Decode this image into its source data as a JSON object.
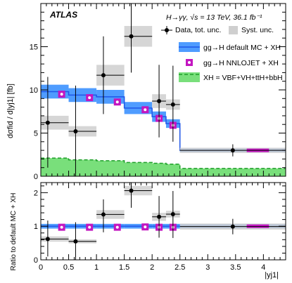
{
  "chart_data": [
    {
      "type": "bar",
      "panel": "main",
      "ylabel": "dσfid / d|yj1| [fb]",
      "ylim": [
        0,
        20
      ],
      "yticks": [
        0,
        5,
        10,
        15
      ],
      "xlim": [
        0,
        4.4
      ],
      "annotations": {
        "atlas": "ATLAS",
        "process": "H→γγ, √s = 13 TeV,  36.1 fb⁻¹"
      },
      "legend": {
        "data": "Data, tot. unc.",
        "syst": "Syst. unc.",
        "default_mc": "gg→H default MC + XH",
        "nnlojet": "gg→H NNLOJET + XH",
        "xh": "XH = VBF+VH+ttH+bbH"
      },
      "bins": [
        {
          "lo": 0.0,
          "hi": 0.5,
          "data": 6.2,
          "stat_lo": 1.0,
          "stat_hi": 11.5,
          "syst_lo": 5.4,
          "syst_hi": 7.0,
          "default_mc": 9.8,
          "default_lo": 9.0,
          "default_hi": 10.6,
          "nnlojet": 9.5,
          "xh": 2.1
        },
        {
          "lo": 0.5,
          "hi": 1.0,
          "data": 5.2,
          "stat_lo": 0.0,
          "stat_hi": 10.5,
          "syst_lo": 4.6,
          "syst_hi": 5.8,
          "default_mc": 9.4,
          "default_lo": 8.6,
          "default_hi": 10.2,
          "nnlojet": 9.1,
          "xh": 1.9
        },
        {
          "lo": 1.0,
          "hi": 1.5,
          "data": 11.7,
          "stat_lo": 7.2,
          "stat_hi": 16.2,
          "syst_lo": 10.5,
          "syst_hi": 12.9,
          "default_mc": 9.2,
          "default_lo": 8.4,
          "default_hi": 10.0,
          "nnlojet": 8.6,
          "xh": 1.8
        },
        {
          "lo": 1.5,
          "hi": 2.0,
          "data": 16.2,
          "stat_lo": 12.0,
          "stat_hi": 20.0,
          "syst_lo": 15.0,
          "syst_hi": 17.4,
          "default_mc": 7.9,
          "default_lo": 7.2,
          "default_hi": 8.6,
          "nnlojet": 7.7,
          "xh": 1.6
        },
        {
          "lo": 2.0,
          "hi": 2.25,
          "data": 8.7,
          "stat_lo": 4.5,
          "stat_hi": 12.9,
          "syst_lo": 7.9,
          "syst_hi": 9.5,
          "default_mc": 6.9,
          "default_lo": 6.3,
          "default_hi": 7.5,
          "nnlojet": 6.7,
          "xh": 1.5
        },
        {
          "lo": 2.25,
          "hi": 2.5,
          "data": 8.3,
          "stat_lo": 4.0,
          "stat_hi": 12.8,
          "syst_lo": 7.7,
          "syst_hi": 8.9,
          "default_mc": 6.1,
          "default_lo": 5.6,
          "default_hi": 6.6,
          "nnlojet": 5.9,
          "xh": 1.4
        },
        {
          "lo": 2.5,
          "hi": 4.4,
          "data": 3.0,
          "stat_lo": 2.3,
          "stat_hi": 3.7,
          "syst_lo": 2.7,
          "syst_hi": 3.3,
          "default_mc": 3.0,
          "default_lo": 2.8,
          "default_hi": 3.2,
          "nnlojet": 3.0,
          "xh": 0.9,
          "marker_x": 3.45,
          "nnlojet_lo": 3.7,
          "nnlojet_hi": 4.1
        }
      ]
    },
    {
      "type": "bar",
      "panel": "ratio",
      "xlabel": "|yj1|",
      "ylabel": "Ratio to default MC + XH",
      "ylim": [
        0,
        2.3
      ],
      "yticks": [
        0,
        1,
        2
      ],
      "xticks": [
        0,
        0.5,
        1,
        1.5,
        2,
        2.5,
        3,
        3.5,
        4
      ],
      "bins": [
        {
          "lo": 0.0,
          "hi": 0.5,
          "data": 0.62,
          "stat_lo": 0.1,
          "stat_hi": 1.17,
          "syst_lo": 0.54,
          "syst_hi": 0.7,
          "nnlojet": 0.97,
          "band_lo": 0.93,
          "band_hi": 1.07
        },
        {
          "lo": 0.5,
          "hi": 1.0,
          "data": 0.55,
          "stat_lo": 0.0,
          "stat_hi": 1.12,
          "syst_lo": 0.49,
          "syst_hi": 0.61,
          "nnlojet": 0.97,
          "band_lo": 0.93,
          "band_hi": 1.07
        },
        {
          "lo": 1.0,
          "hi": 1.5,
          "data": 1.35,
          "stat_lo": 0.82,
          "stat_hi": 1.8,
          "syst_lo": 1.22,
          "syst_hi": 1.48,
          "nnlojet": 0.97,
          "band_lo": 0.93,
          "band_hi": 1.07
        },
        {
          "lo": 1.5,
          "hi": 2.0,
          "data": 2.06,
          "stat_lo": 1.55,
          "stat_hi": 2.3,
          "syst_lo": 1.92,
          "syst_hi": 2.2,
          "nnlojet": 0.98,
          "band_lo": 0.93,
          "band_hi": 1.07
        },
        {
          "lo": 2.0,
          "hi": 2.25,
          "data": 1.28,
          "stat_lo": 0.66,
          "stat_hi": 1.9,
          "syst_lo": 1.16,
          "syst_hi": 1.4,
          "nnlojet": 0.97,
          "band_lo": 0.93,
          "band_hi": 1.07
        },
        {
          "lo": 2.25,
          "hi": 2.5,
          "data": 1.36,
          "stat_lo": 0.65,
          "stat_hi": 2.05,
          "syst_lo": 1.26,
          "syst_hi": 1.46,
          "nnlojet": 0.97,
          "band_lo": 0.93,
          "band_hi": 1.07
        },
        {
          "lo": 2.5,
          "hi": 4.4,
          "data": 0.99,
          "stat_lo": 0.76,
          "stat_hi": 1.22,
          "syst_lo": 0.9,
          "syst_hi": 1.08,
          "nnlojet": 1.0,
          "band_lo": 0.94,
          "band_hi": 1.06,
          "marker_x": 3.45,
          "nnlojet_lo": 3.7,
          "nnlojet_hi": 4.1
        }
      ]
    }
  ],
  "colors": {
    "default_mc_line": "#1f56e8",
    "default_mc_band": "#4f9cff",
    "nnlojet": "#c316c0",
    "xh_fill": "#79df7b",
    "xh_line": "#1f9f2a",
    "syst": "#cfcfcf",
    "data": "#000000"
  }
}
